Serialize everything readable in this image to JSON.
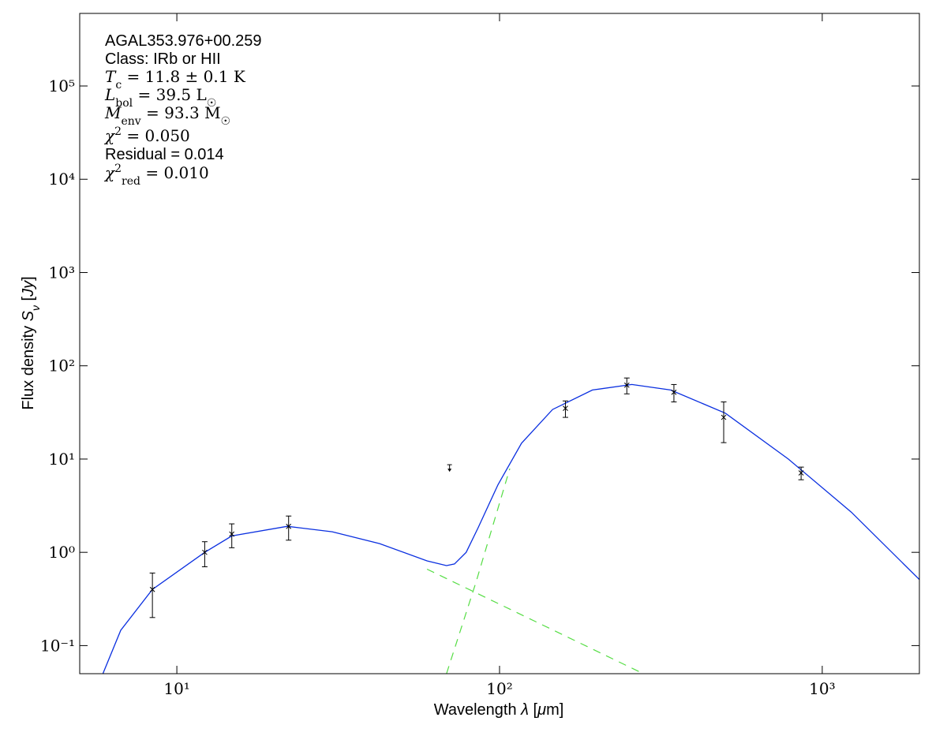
{
  "chart_data": {
    "type": "scatter",
    "xlabel": [
      {
        "text": "Wavelength "
      },
      {
        "text": "λ",
        "italic": true
      },
      {
        "text": " ["
      },
      {
        "text": "μ",
        "italic": true
      },
      {
        "text": "m]"
      }
    ],
    "ylabel": [
      {
        "text": "Flux density "
      },
      {
        "text": "S",
        "italic": true
      },
      {
        "text": "ν",
        "sub": true,
        "italic": true
      },
      {
        "text": " ["
      },
      {
        "text": "Jy",
        "italic": true
      },
      {
        "text": "]"
      }
    ],
    "log_x": true,
    "log_y": true,
    "xlim": [
      5,
      2000
    ],
    "ylim": [
      0.05,
      600000
    ],
    "xticks": [
      {
        "value": 10,
        "label": "10¹"
      },
      {
        "value": 100,
        "label": "10²"
      },
      {
        "value": 1000,
        "label": "10³"
      }
    ],
    "yticks": [
      {
        "value": 0.1,
        "label": "10⁻¹"
      },
      {
        "value": 1,
        "label": "10⁰"
      },
      {
        "value": 10,
        "label": "10¹"
      },
      {
        "value": 100,
        "label": "10²"
      },
      {
        "value": 1000,
        "label": "10³"
      },
      {
        "value": 10000,
        "label": "10⁴"
      },
      {
        "value": 100000,
        "label": "10⁵"
      }
    ],
    "annotations": [
      {
        "math": false,
        "parts": [
          {
            "text": "AGAL353.976+00.259"
          }
        ]
      },
      {
        "math": false,
        "parts": [
          {
            "text": "Class: IRb or HII"
          }
        ]
      },
      {
        "math": true,
        "parts": [
          {
            "text": "T",
            "italic": true
          },
          {
            "text": "c",
            "sub": true
          },
          {
            "text": " = 11.8 ± 0.1 K"
          }
        ]
      },
      {
        "math": true,
        "parts": [
          {
            "text": "L",
            "italic": true
          },
          {
            "text": "bol",
            "sub": true
          },
          {
            "text": " = 39.5 L"
          },
          {
            "text": "☉",
            "sub": true
          }
        ]
      },
      {
        "math": true,
        "parts": [
          {
            "text": "M",
            "italic": true
          },
          {
            "text": "env",
            "sub": true
          },
          {
            "text": " = 93.3 M"
          },
          {
            "text": "☉",
            "sub": true
          }
        ]
      },
      {
        "math": true,
        "parts": [
          {
            "text": "χ",
            "italic": true
          },
          {
            "text": "2",
            "sup": true
          },
          {
            "text": " = 0.050"
          }
        ]
      },
      {
        "math": false,
        "parts": [
          {
            "text": "Residual = 0.014"
          }
        ]
      },
      {
        "math": true,
        "parts": [
          {
            "text": "χ",
            "italic": true
          },
          {
            "text": "2",
            "sup": true
          },
          {
            "text": "red",
            "sub": true
          },
          {
            "text": " = 0.010"
          }
        ]
      }
    ],
    "series": [
      {
        "color": "#000000",
        "marker": "x",
        "x": [
          8.4,
          12.2,
          14.8,
          22.2,
          160,
          248,
          347,
          495,
          860
        ],
        "values": [
          0.4,
          1.0,
          1.57,
          1.9,
          35,
          62,
          52,
          28,
          7.1
        ],
        "errors": [
          0.2,
          0.3,
          0.45,
          0.55,
          7,
          12,
          11,
          13,
          1.1
        ]
      },
      {
        "color": "#000000",
        "marker": "upper-limit",
        "x": [
          70
        ],
        "values": [
          8.7
        ]
      }
    ],
    "lines": [
      {
        "color": "#0a2fe0",
        "style": "solid",
        "x": [
          5.9,
          6.7,
          8.4,
          12.2,
          14.8,
          22,
          30.3,
          42.5,
          59.6,
          68.5,
          72.5,
          78.8,
          85.8,
          98.9,
          117,
          146,
          194,
          257,
          339,
          501,
          785,
          1230,
          2000
        ],
        "values": [
          0.05,
          0.146,
          0.4,
          1.0,
          1.5,
          1.9,
          1.66,
          1.24,
          0.81,
          0.72,
          0.75,
          1.0,
          1.83,
          5.3,
          14.8,
          34,
          55,
          63,
          55,
          31,
          10,
          2.7,
          0.51
        ]
      },
      {
        "color": "#55dd44",
        "style": "dashed",
        "x": [
          59.6,
          131,
          279
        ],
        "values": [
          0.66,
          0.177,
          0.05
        ]
      },
      {
        "color": "#55dd44",
        "style": "dashed",
        "x": [
          68.5,
          84.4,
          107.6
        ],
        "values": [
          0.05,
          0.47,
          7.9
        ]
      }
    ]
  }
}
